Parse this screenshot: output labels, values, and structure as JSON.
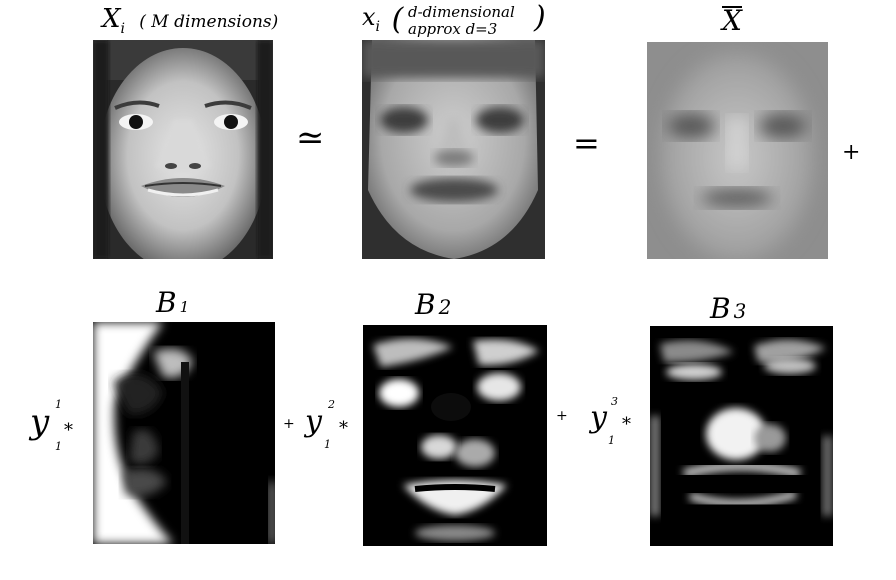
{
  "top_row": {
    "face1": {
      "title_main": "X",
      "title_sub": "i",
      "title_note": "( M dimensions)"
    },
    "approx_op": "≃",
    "face2": {
      "title_main": "x",
      "title_sub": "i",
      "note_line1": "d-dimensional",
      "note_line2": "approx d=3"
    },
    "equals_op": "=",
    "face3": {
      "title_main": "X",
      "overline": true
    },
    "plus_op": "+"
  },
  "bottom_row": {
    "basis": [
      {
        "label_main": "B",
        "label_sub": "1",
        "coef_main": "y",
        "coef_sup": "1",
        "coef_sub": "1",
        "times": "*"
      },
      {
        "label_main": "B",
        "label_sub": "2",
        "coef_main": "y",
        "coef_sup": "2",
        "coef_sub": "1",
        "times": "*"
      },
      {
        "label_main": "B",
        "label_sub": "3",
        "coef_main": "y",
        "coef_sup": "3",
        "coef_sub": "1",
        "times": "*"
      }
    ],
    "plus_between": [
      "+",
      "+"
    ]
  },
  "colors": {
    "background": "#ffffff",
    "ink": "#000000"
  }
}
